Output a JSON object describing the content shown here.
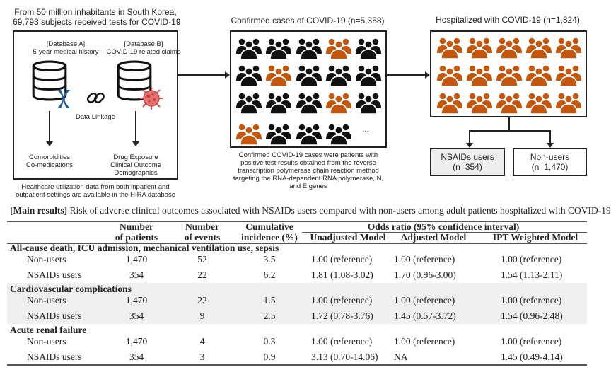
{
  "left_panel": {
    "title_line1": "From 50 million inhabitants in South Korea,",
    "title_line2": "69,793 subjects received tests for COVID-19",
    "db_a_label": "[Database A]",
    "db_a_desc": "5-year medical history",
    "db_b_label": "[Database B]",
    "db_b_desc": "COVID-19 related claims",
    "linkage": "Data Linkage",
    "a_out_1": "Comorbidities",
    "a_out_2": "Co-medications",
    "b_out_1": "Drug Exposure",
    "b_out_2": "Clinical Outcome",
    "b_out_3": "Demographics",
    "caption_1": "Healthcare utilization data from both inpatient and",
    "caption_2": "outpatient settings are available in the HIRA database",
    "icons": [
      "database-icon",
      "chromosome-icon",
      "link-icon",
      "virus-icon"
    ]
  },
  "middle_panel": {
    "title": "Confirmed cases of COVID-19 (n=5,358)",
    "grid": [
      [
        "black",
        "black",
        "black",
        "orange",
        "black"
      ],
      [
        "black",
        "orange",
        "black",
        "black",
        "black"
      ],
      [
        "black",
        "black",
        "black",
        "orange",
        "black"
      ],
      [
        "orange",
        "black",
        "black",
        "black"
      ]
    ],
    "ellipsis": "...",
    "caption": [
      "Confirmed COVID-19 cases were patients with",
      "positive test results obtained from the reverse",
      "transcription polymerase chain reaction method",
      "targeting the RNA-dependent RNA polymerase, N,",
      "and E genes"
    ]
  },
  "right_panel": {
    "title": "Hospitalized with COVID-19 (n=1,824)",
    "rows": 3,
    "cols": 5,
    "nsaids_label": "NSAIDs users",
    "nsaids_n": "(n=354)",
    "nonusers_label": "Non-users",
    "nonusers_n": "(n=1,470)"
  },
  "colors": {
    "orange": "#c3570f",
    "black": "#111111",
    "shade": "#efefef",
    "nsaids_box": "#eeeeee"
  },
  "results": {
    "caption_bold": "[Main results]",
    "caption_rest": " Risk of adverse clinical outcomes associated with NSAIDs users compared with non-users among adult patients hospitalized with COVID-19",
    "headers": {
      "patients_1": "Number",
      "patients_2": "of patients",
      "events_1": "Number",
      "events_2": "of events",
      "incidence_1": "Cumulative",
      "incidence_2": "incidence (%)",
      "or_group": "Odds ratio (95% confidence interval)",
      "unadjusted": "Unadjusted Model",
      "adjusted": "Adjusted Model",
      "ipt": "IPT Weighted Model"
    },
    "groups": [
      {
        "title": "All-cause death, ICU admission, mechanical ventilation use, sepsis",
        "shaded": false,
        "rows": [
          [
            "Non-users",
            "1,470",
            "52",
            "3.5",
            "1.00 (reference)",
            "1.00 (reference)",
            "1.00 (reference)"
          ],
          [
            "NSAIDs users",
            "354",
            "22",
            "6.2",
            "1.81 (1.08-3.02)",
            "1.70 (0.96-3.00)",
            "1.54 (1.13-2.11)"
          ]
        ]
      },
      {
        "title": "Cardiovascular complications",
        "shaded": true,
        "rows": [
          [
            "Non-users",
            "1,470",
            "22",
            "1.5",
            "1.00 (reference)",
            "1.00 (reference)",
            "1.00 (reference)"
          ],
          [
            "NSAIDs users",
            "354",
            "9",
            "2.5",
            "1.72 (0.78-3.76)",
            "1.45 (0.57-3.72)",
            "1.54 (0.96-2.48)"
          ]
        ]
      },
      {
        "title": "Acute renal failure",
        "shaded": false,
        "rows": [
          [
            "Non-users",
            "1,470",
            "4",
            "0.3",
            "1.00 (reference)",
            "1.00 (reference)",
            "1.00 (reference)"
          ],
          [
            "NSAIDs users",
            "354",
            "3",
            "0.9",
            "3.13 (0.70-14.06)",
            "NA",
            "1.45 (0.49-4.14)"
          ]
        ]
      }
    ]
  }
}
